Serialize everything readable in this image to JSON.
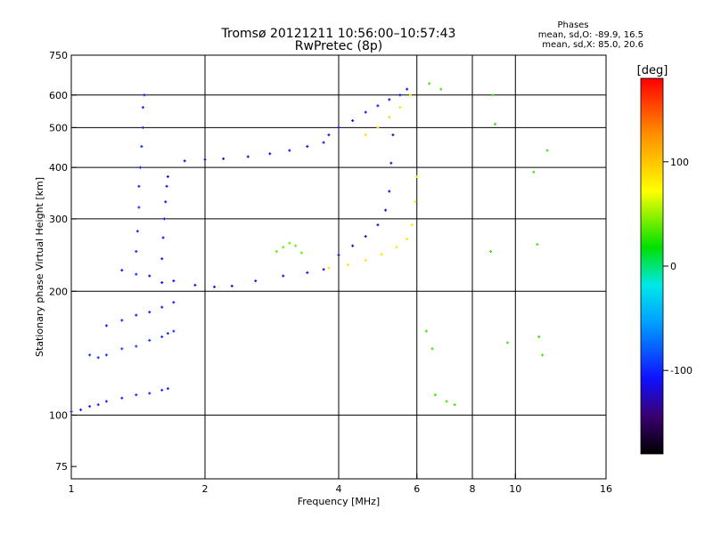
{
  "chart_data": {
    "type": "scatter",
    "title": "Tromsø 20121211 10:56:00–10:57:43",
    "subtitle": "RwPretec (8p)",
    "xlabel": "Frequency [MHz]",
    "ylabel": "Stationary phase Virtual Height [km]",
    "x_scale": "log",
    "y_scale": "log",
    "xlim": [
      1,
      16
    ],
    "ylim": [
      70,
      750
    ],
    "x_ticks": [
      1,
      2,
      4,
      6,
      8,
      10,
      16
    ],
    "y_ticks": [
      75,
      100,
      200,
      300,
      400,
      500,
      600,
      750
    ],
    "x_gridlines": [
      2,
      4,
      6,
      8,
      10
    ],
    "y_gridlines": [
      100,
      200,
      300,
      400,
      500,
      600
    ],
    "grid": true,
    "legend": {
      "title": "Phases",
      "lines": [
        "mean, sd,O: -89.9, 16.5",
        "mean, sd,X: 85.0, 20.6"
      ]
    },
    "colorbar": {
      "label": "[deg]",
      "range": [
        -180,
        180
      ],
      "ticks": [
        100,
        0,
        -100
      ],
      "colormap": "rainbow"
    },
    "series": [
      {
        "trace": "lower-layer-trace-1",
        "x": [
          1.0,
          1.05,
          1.1,
          1.15,
          1.2,
          1.3,
          1.4,
          1.5,
          1.6,
          1.65
        ],
        "y": [
          102,
          103,
          105,
          106,
          108,
          110,
          112,
          113,
          115,
          116
        ],
        "phase": -100
      },
      {
        "trace": "lower-layer-trace-2",
        "x": [
          1.1,
          1.15,
          1.2,
          1.3,
          1.4,
          1.5,
          1.6,
          1.65,
          1.7
        ],
        "y": [
          140,
          138,
          140,
          145,
          147,
          152,
          155,
          158,
          160
        ],
        "phase": -95
      },
      {
        "trace": "lower-layer-trace-3",
        "x": [
          1.2,
          1.3,
          1.4,
          1.5,
          1.6,
          1.7
        ],
        "y": [
          165,
          170,
          175,
          178,
          183,
          188
        ],
        "phase": -105
      },
      {
        "trace": "cusp-1p4",
        "x": [
          1.4,
          1.4,
          1.41,
          1.42,
          1.42,
          1.43,
          1.44,
          1.45,
          1.45,
          1.46
        ],
        "y": [
          220,
          250,
          280,
          320,
          360,
          400,
          450,
          500,
          560,
          600
        ],
        "phase": -100
      },
      {
        "trace": "cusp-1p6",
        "x": [
          1.6,
          1.6,
          1.61,
          1.62,
          1.63,
          1.64,
          1.65
        ],
        "y": [
          210,
          240,
          270,
          300,
          330,
          360,
          380
        ],
        "phase": -110
      },
      {
        "trace": "F1-trace",
        "x": [
          1.3,
          1.5,
          1.7,
          1.9,
          2.1,
          2.3,
          2.6,
          3.0,
          3.4,
          3.7
        ],
        "y": [
          225,
          218,
          212,
          207,
          205,
          206,
          212,
          218,
          222,
          226
        ],
        "phase": -115
      },
      {
        "trace": "F1-trace-green",
        "x": [
          2.9,
          3.0,
          3.1,
          3.2,
          3.3
        ],
        "y": [
          250,
          256,
          262,
          258,
          248
        ],
        "phase": 40
      },
      {
        "trace": "F2-O-trace-low",
        "x": [
          1.8,
          2.0,
          2.2,
          2.5,
          2.8,
          3.1,
          3.4,
          3.7
        ],
        "y": [
          415,
          418,
          420,
          425,
          432,
          440,
          450,
          460
        ],
        "phase": -120
      },
      {
        "trace": "F2-O-rise",
        "x": [
          3.8,
          4.0,
          4.3,
          4.6,
          4.9,
          5.2,
          5.5,
          5.7
        ],
        "y": [
          480,
          500,
          520,
          545,
          565,
          585,
          600,
          620
        ],
        "phase": -110
      },
      {
        "trace": "F2-O-lower",
        "x": [
          4.0,
          4.3,
          4.6,
          4.9,
          5.1,
          5.2,
          5.25,
          5.3
        ],
        "y": [
          245,
          258,
          272,
          290,
          315,
          350,
          410,
          480
        ],
        "phase": -125
      },
      {
        "trace": "F2-X-trace",
        "x": [
          3.8,
          4.2,
          4.6,
          5.0,
          5.4,
          5.7,
          5.85,
          5.95,
          6.0
        ],
        "y": [
          228,
          232,
          238,
          246,
          256,
          268,
          290,
          330,
          380
        ],
        "phase": 85
      },
      {
        "trace": "F2-X-upper",
        "x": [
          4.6,
          4.9,
          5.2,
          5.5,
          5.8
        ],
        "y": [
          480,
          500,
          530,
          560,
          600
        ],
        "phase": 90
      },
      {
        "trace": "scattered-points",
        "x": [
          6.3,
          6.5,
          6.6,
          7.0,
          7.3,
          8.9,
          9.0,
          9.6,
          11.0,
          11.2,
          11.3,
          11.5,
          11.8,
          6.4,
          6.8,
          8.8
        ],
        "y": [
          160,
          145,
          112,
          108,
          106,
          600,
          510,
          150,
          390,
          260,
          155,
          140,
          440,
          640,
          620,
          250
        ],
        "phase": 30
      }
    ]
  }
}
